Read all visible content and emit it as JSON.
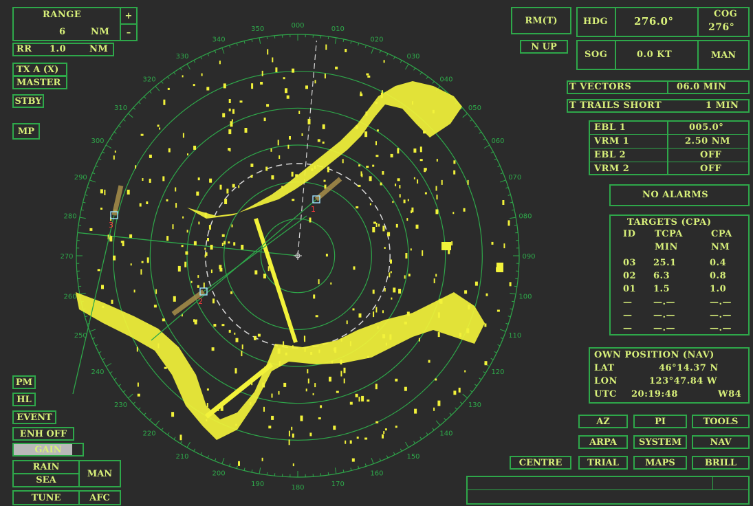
{
  "range": {
    "title": "RANGE",
    "value": "6",
    "unit": "NM",
    "plus": "+",
    "minus": "–"
  },
  "rr": {
    "label": "RR",
    "value": "1.0",
    "unit": "NM"
  },
  "left_buttons": {
    "tx": "TX A (X)",
    "master": "MASTER",
    "stby": "STBY",
    "mp": "MP",
    "pm": "PM",
    "hl": "HL",
    "event": "EVENT",
    "enh": "ENH OFF"
  },
  "gain": {
    "label": "GAIN",
    "level_pct": 85
  },
  "rain_sea": {
    "rain": "RAIN",
    "sea": "SEA",
    "man": "MAN"
  },
  "tune": {
    "tune": "TUNE",
    "afc": "AFC"
  },
  "mode": {
    "rm": "RM(T)",
    "nup": "N UP"
  },
  "hdg": {
    "label": "HDG",
    "value": "276.0°",
    "cog_label": "COG",
    "cog_value": "276°"
  },
  "sog": {
    "label": "SOG",
    "value": "0.0 KT",
    "mode": "MAN"
  },
  "vectors": {
    "label": "T VECTORS",
    "value": "06.0 MIN"
  },
  "trails": {
    "label": "T TRAILS SHORT",
    "value": "1 MIN"
  },
  "ebl_vrm": [
    {
      "label": "EBL 1",
      "value": "005.0°"
    },
    {
      "label": "VRM 1",
      "value": "2.50 NM"
    },
    {
      "label": "EBL 2",
      "value": "OFF"
    },
    {
      "label": "VRM 2",
      "value": "OFF"
    }
  ],
  "alarms": "NO ALARMS",
  "targets": {
    "title": "TARGETS (CPA)",
    "headers": [
      "ID",
      "TCPA",
      "CPA"
    ],
    "units": [
      "",
      "MIN",
      "NM"
    ],
    "rows": [
      [
        "03",
        "25.1",
        "0.4"
      ],
      [
        "02",
        "6.3",
        "0.8"
      ],
      [
        "01",
        "1.5",
        "1.0"
      ],
      [
        "—",
        "—.—",
        "—.—"
      ],
      [
        "—",
        "—.—",
        "—.—"
      ],
      [
        "—",
        "—.—",
        "—.—"
      ]
    ]
  },
  "own_position": {
    "title": "OWN POSITION (NAV)",
    "lat_label": "LAT",
    "lat": "46°14.37 N",
    "lon_label": "LON",
    "lon": "123°47.84 W",
    "utc_label": "UTC",
    "utc": "20:19:48",
    "datum": "W84"
  },
  "menu": {
    "az": "AZ",
    "pi": "PI",
    "tools": "TOOLS",
    "arpa": "ARPA",
    "system": "SYSTEM",
    "nav": "NAV",
    "centre": "CENTRE",
    "trial": "TRIAL",
    "maps": "MAPS",
    "brill": "BRILL"
  },
  "bearing_labels": [
    "000",
    "010",
    "020",
    "030",
    "040",
    "050",
    "060",
    "070",
    "080",
    "090",
    "100",
    "110",
    "120",
    "130",
    "140",
    "150",
    "160",
    "170",
    "180",
    "190",
    "200",
    "210",
    "220",
    "230",
    "240",
    "250",
    "260",
    "270",
    "280",
    "290",
    "300",
    "310",
    "320",
    "330",
    "340",
    "350"
  ],
  "target_ids": [
    "1",
    "2",
    "3"
  ],
  "colors": {
    "frame": "#2ea84a",
    "text": "#d8f07a",
    "echo": "#f2f23a",
    "background": "#2b2b2b"
  }
}
